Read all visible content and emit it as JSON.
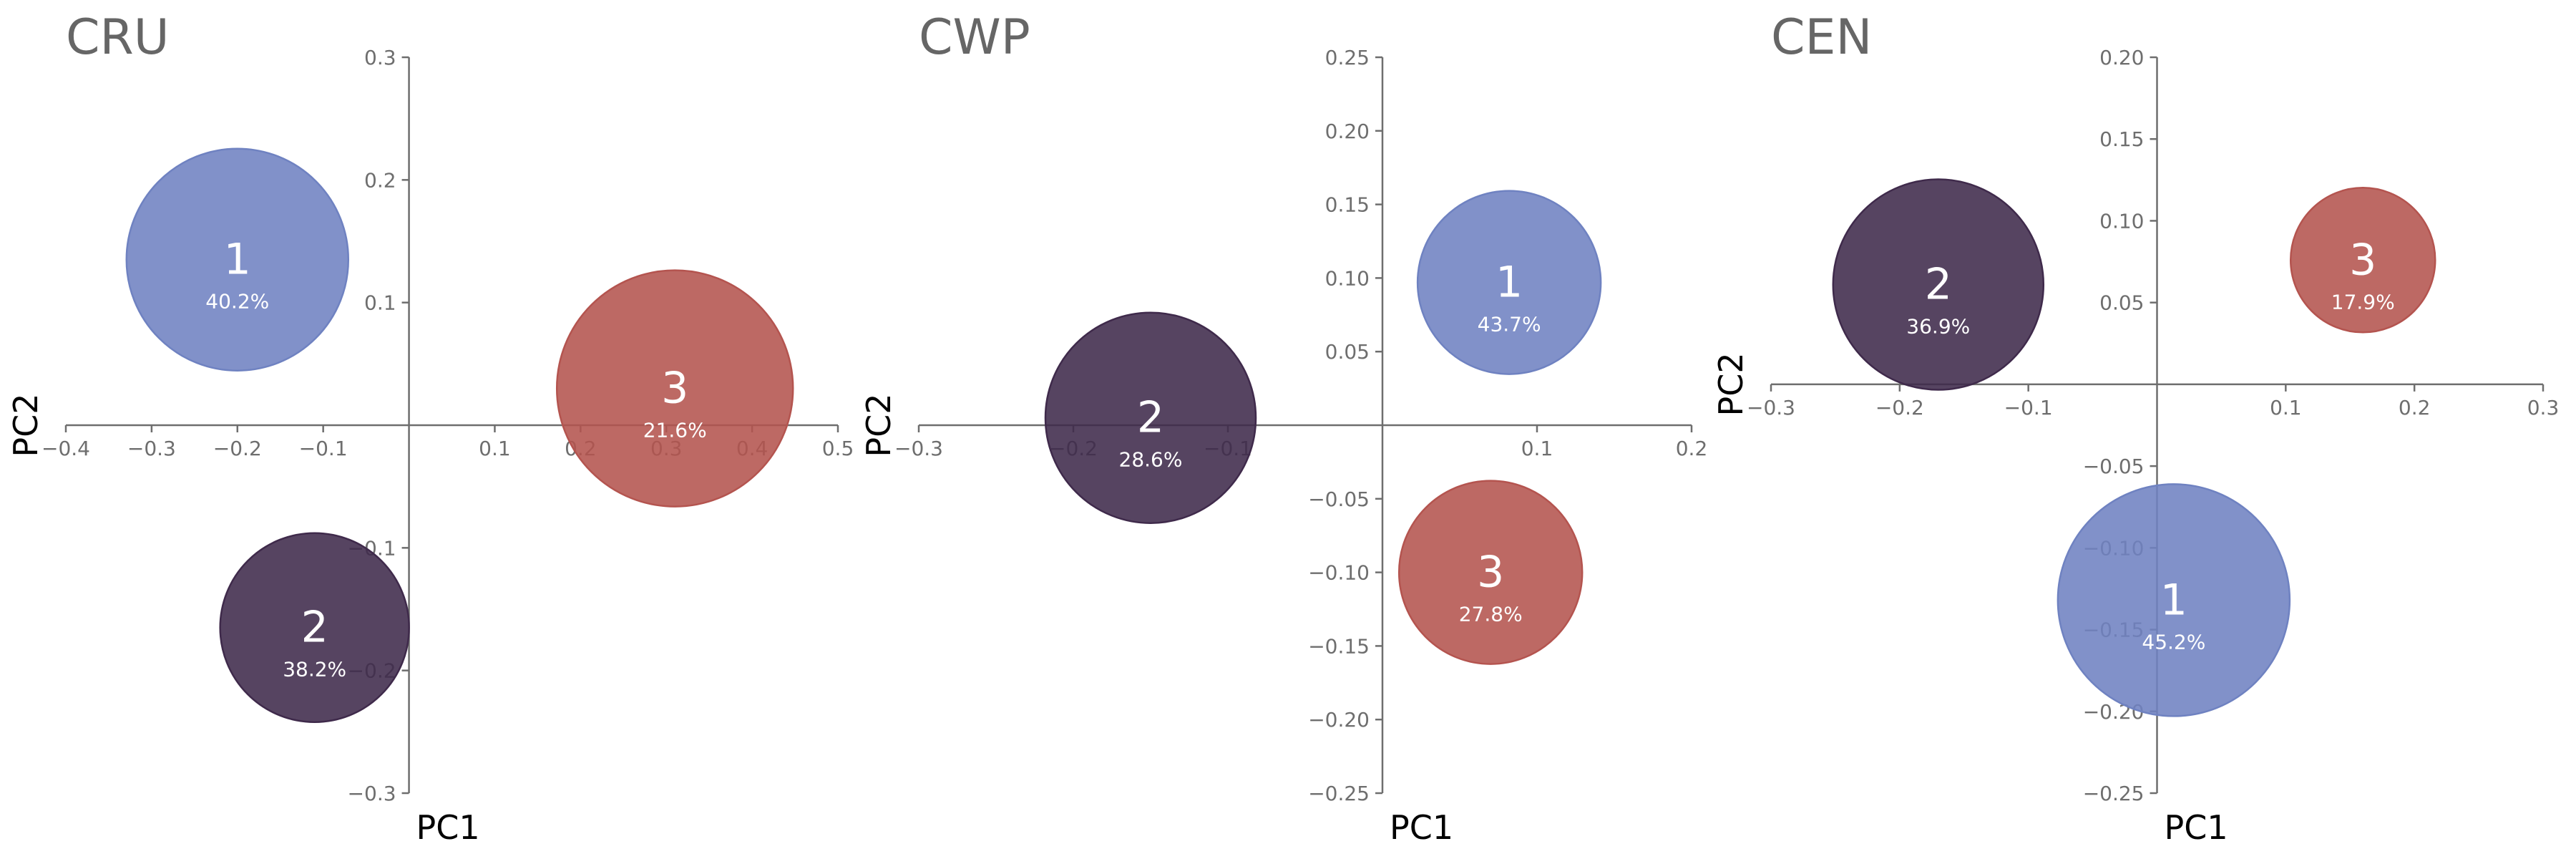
{
  "colors": {
    "cluster_1": "#6f82c1",
    "cluster_2": "#3f2a4b",
    "cluster_3": "#b4544f",
    "axis": "#6e6e6e",
    "title": "#666666",
    "label": "#000000",
    "bubble_text": "#ffffff"
  },
  "chart_data": [
    {
      "type": "scatter",
      "title": "CRU",
      "xlabel": "PC1",
      "ylabel": "PC2",
      "xlim": [
        -0.4,
        0.5
      ],
      "ylim": [
        -0.3,
        0.3
      ],
      "xticks": [
        -0.4,
        -0.3,
        -0.2,
        -0.1,
        0.1,
        0.2,
        0.3,
        0.4,
        0.5
      ],
      "yticks": [
        -0.3,
        -0.2,
        -0.1,
        0.1,
        0.2,
        0.3
      ],
      "xtick_labels": [
        "−0.4",
        "−0.3",
        "−0.2",
        "−0.1",
        "0.1",
        "0.2",
        "0.3",
        "0.4",
        "0.5"
      ],
      "ytick_labels": [
        "−0.3",
        "−0.2",
        "−0.1",
        "0.1",
        "0.2",
        "0.3"
      ],
      "grid": false,
      "points": [
        {
          "label": "1",
          "percent": "40.2%",
          "x": -0.2,
          "y": 0.135,
          "share": 40.2,
          "color": "#6f82c1"
        },
        {
          "label": "2",
          "percent": "38.2%",
          "x": -0.11,
          "y": -0.165,
          "share": 38.2,
          "color": "#3f2a4b"
        },
        {
          "label": "3",
          "percent": "21.6%",
          "x": 0.31,
          "y": 0.03,
          "share": 21.6,
          "color": "#b4544f"
        }
      ]
    },
    {
      "type": "scatter",
      "title": "CWP",
      "xlabel": "PC1",
      "ylabel": "PC2",
      "xlim": [
        -0.3,
        0.2
      ],
      "ylim": [
        -0.25,
        0.25
      ],
      "xticks": [
        -0.3,
        -0.2,
        -0.1,
        0.1,
        0.2
      ],
      "yticks": [
        -0.25,
        -0.2,
        -0.15,
        -0.1,
        -0.05,
        0.05,
        0.1,
        0.15,
        0.2,
        0.25
      ],
      "xtick_labels": [
        "−0.3",
        "−0.2",
        "−0.1",
        "0.1",
        "0.2"
      ],
      "ytick_labels": [
        "−0.25",
        "−0.20",
        "−0.15",
        "−0.10",
        "−0.05",
        "0.05",
        "0.10",
        "0.15",
        "0.20",
        "0.25"
      ],
      "grid": false,
      "points": [
        {
          "label": "1",
          "percent": "43.7%",
          "x": 0.082,
          "y": 0.097,
          "share": 43.7,
          "color": "#6f82c1"
        },
        {
          "label": "2",
          "percent": "28.6%",
          "x": -0.15,
          "y": 0.005,
          "share": 28.6,
          "color": "#3f2a4b"
        },
        {
          "label": "3",
          "percent": "27.8%",
          "x": 0.07,
          "y": -0.1,
          "share": 27.8,
          "color": "#b4544f"
        }
      ]
    },
    {
      "type": "scatter",
      "title": "CEN",
      "xlabel": "PC1",
      "ylabel": "PC2",
      "xlim": [
        -0.3,
        0.3
      ],
      "ylim": [
        -0.25,
        0.2
      ],
      "xticks": [
        -0.3,
        -0.2,
        -0.1,
        0.1,
        0.2,
        0.3
      ],
      "yticks": [
        -0.25,
        -0.2,
        -0.15,
        -0.1,
        -0.05,
        0.05,
        0.1,
        0.15,
        0.2
      ],
      "xtick_labels": [
        "−0.3",
        "−0.2",
        "−0.1",
        "0.1",
        "0.2",
        "0.3"
      ],
      "ytick_labels": [
        "−0.25",
        "−0.20",
        "−0.15",
        "−0.10",
        "−0.05",
        "0.05",
        "0.10",
        "0.15",
        "0.20"
      ],
      "grid": false,
      "points": [
        {
          "label": "1",
          "percent": "45.2%",
          "x": 0.013,
          "y": -0.132,
          "share": 45.2,
          "color": "#6f82c1"
        },
        {
          "label": "2",
          "percent": "36.9%",
          "x": -0.17,
          "y": 0.061,
          "share": 36.9,
          "color": "#3f2a4b"
        },
        {
          "label": "3",
          "percent": "17.9%",
          "x": 0.16,
          "y": 0.076,
          "share": 17.9,
          "color": "#b4544f"
        }
      ]
    }
  ]
}
